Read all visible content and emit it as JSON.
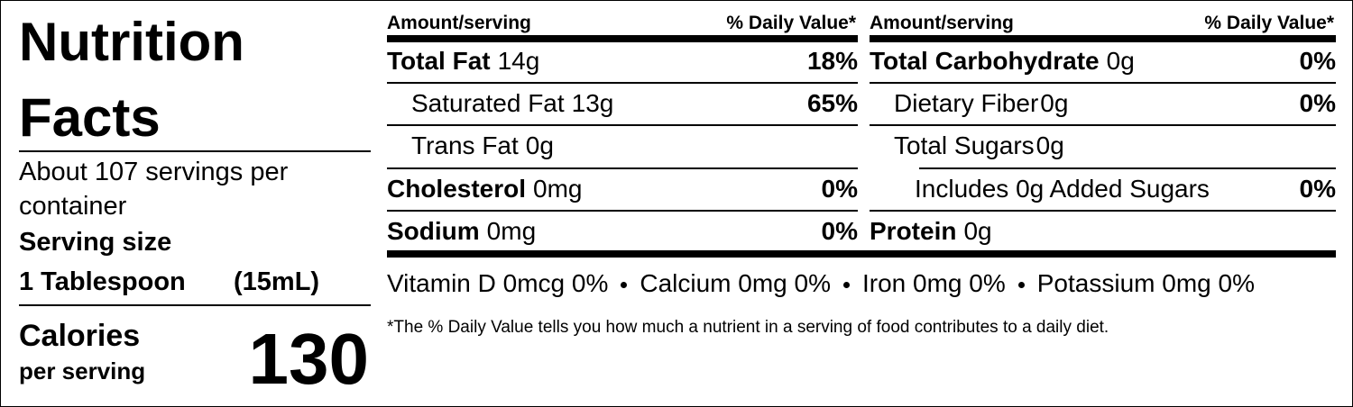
{
  "title": [
    "Nutrition",
    "Facts"
  ],
  "servings": [
    "About 107 servings per",
    "container"
  ],
  "serving_size_label": "Serving size",
  "serving_size": [
    "1 Tablespoon",
    "(15mL)"
  ],
  "calories_label": "Calories",
  "calories_sub": "per serving",
  "calories": 130,
  "columns": [
    {
      "header": [
        "Amount/serving",
        "% Daily Value*"
      ],
      "rows": [
        {
          "name": "Total Fat",
          "amount": "14g",
          "dv": "18%"
        },
        {
          "name": "Saturated Fat",
          "amount": "13g",
          "dv": "65%"
        },
        {
          "name": "Trans Fat",
          "amount": "0g"
        },
        {
          "name": "Cholesterol",
          "amount": "0mg",
          "dv": "0%"
        },
        {
          "name": "Sodium",
          "amount": "0mg",
          "dv": "0%"
        }
      ]
    },
    {
      "header": [
        "Amount/serving",
        "% Daily Value*"
      ],
      "rows": [
        {
          "name": "Total Carbohydrate",
          "amount": "0g",
          "dv": "0%"
        },
        {
          "name": "Dietary Fiber",
          "amount": "0g",
          "dv": "0%"
        },
        {
          "name": "Total Sugars",
          "amount": "0g"
        },
        {
          "name": "Includes 0g Added Sugars",
          "dv": "0%"
        },
        {
          "name": "Protein",
          "amount": "0g"
        }
      ]
    }
  ],
  "vitamins": [
    "Vitamin D 0mcg 0%",
    "Calcium 0mg 0%",
    "Iron 0mg 0%",
    "Potassium 0mg 0%"
  ],
  "footnote": "*The % Daily Value tells you how much a nutrient in a serving of food contributes to a daily diet."
}
